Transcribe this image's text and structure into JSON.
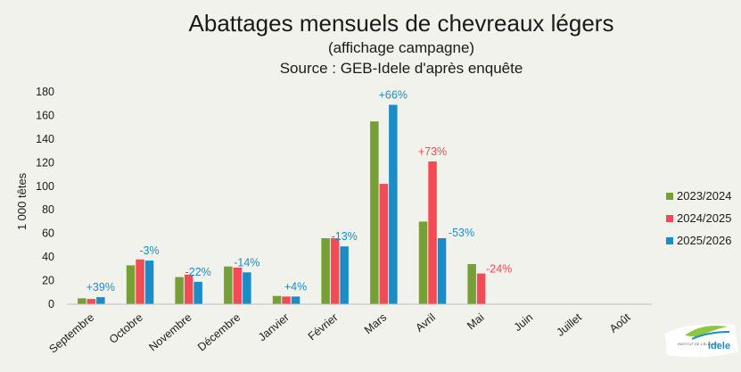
{
  "chart_data": {
    "type": "bar",
    "title": "Abattages mensuels de chevreaux légers",
    "subtitle": "(affichage campagne)",
    "source": "Source : GEB-Idele d'après enquête",
    "ylabel": "1 000 têtes",
    "ylim": [
      0,
      180
    ],
    "yticks": [
      0,
      20,
      40,
      60,
      80,
      100,
      120,
      140,
      160,
      180
    ],
    "grid": false,
    "legend_position": "right",
    "categories": [
      "Septembre",
      "Octobre",
      "Novembre",
      "Décembre",
      "Janvier",
      "Février",
      "Mars",
      "Avril",
      "Mai",
      "Juin",
      "Juillet",
      "Août"
    ],
    "series": [
      {
        "name": "2023/2024",
        "color": "#76a035",
        "values": [
          5,
          33,
          23,
          32,
          7,
          56,
          155,
          70,
          34,
          null,
          null,
          null
        ]
      },
      {
        "name": "2024/2025",
        "color": "#f24b56",
        "values": [
          4.5,
          38,
          25,
          31,
          6.5,
          56,
          102,
          121,
          26,
          null,
          null,
          null
        ]
      },
      {
        "name": "2025/2026",
        "color": "#1a8dc7",
        "values": [
          6,
          37,
          19,
          27,
          6.5,
          49,
          169,
          56,
          null,
          null,
          null,
          null
        ]
      }
    ],
    "annotations": [
      {
        "category": "Septembre",
        "text": "+39%",
        "color": "#1a8dc7"
      },
      {
        "category": "Octobre",
        "text": "-3%",
        "color": "#1a8dc7"
      },
      {
        "category": "Novembre",
        "text": "-22%",
        "color": "#1a8dc7"
      },
      {
        "category": "Décembre",
        "text": "-14%",
        "color": "#1a8dc7"
      },
      {
        "category": "Janvier",
        "text": "+4%",
        "color": "#1a8dc7"
      },
      {
        "category": "Février",
        "text": "-13%",
        "color": "#1a8dc7"
      },
      {
        "category": "Mars",
        "text": "+66%",
        "color": "#1a8dc7"
      },
      {
        "category": "Avril",
        "text": "+73%",
        "color": "#f24b56"
      },
      {
        "category": "Avril",
        "text": "-53%",
        "color": "#1a8dc7"
      },
      {
        "category": "Mai",
        "text": "-24%",
        "color": "#f24b56"
      }
    ]
  },
  "logo": {
    "text": "idele",
    "small_text": "INSTITUT DE L'ÉLEVAGE"
  }
}
